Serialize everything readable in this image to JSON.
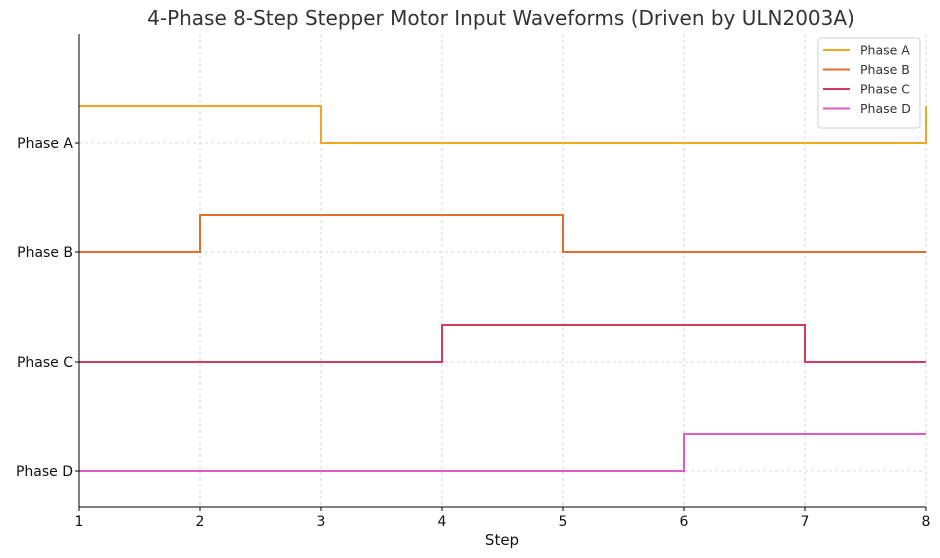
{
  "chart_data": {
    "type": "line",
    "title": "4-Phase 8-Step Stepper Motor Input Waveforms (Driven by ULN2003A)",
    "xlabel": "Step",
    "ylabel": "",
    "x": [
      1,
      2,
      3,
      4,
      5,
      6,
      7,
      8
    ],
    "xlim": [
      1,
      8
    ],
    "x_ticks": [
      "1",
      "2",
      "3",
      "4",
      "5",
      "6",
      "7",
      "8"
    ],
    "y_ticks": [
      "Phase A",
      "Phase B",
      "Phase C",
      "Phase D"
    ],
    "step_style": "post",
    "grid": true,
    "legend_position": "top-right",
    "series": [
      {
        "name": "Phase A",
        "color": "#f0a91c",
        "values": [
          1,
          1,
          0,
          0,
          0,
          0,
          0,
          1
        ]
      },
      {
        "name": "Phase B",
        "color": "#e0702e",
        "values": [
          0,
          1,
          1,
          1,
          0,
          0,
          0,
          0
        ]
      },
      {
        "name": "Phase C",
        "color": "#d43b5c",
        "values": [
          0,
          0,
          0,
          1,
          1,
          1,
          0,
          0
        ]
      },
      {
        "name": "Phase D",
        "color": "#df5cc6",
        "values": [
          0,
          0,
          0,
          0,
          0,
          1,
          1,
          1
        ]
      }
    ]
  }
}
